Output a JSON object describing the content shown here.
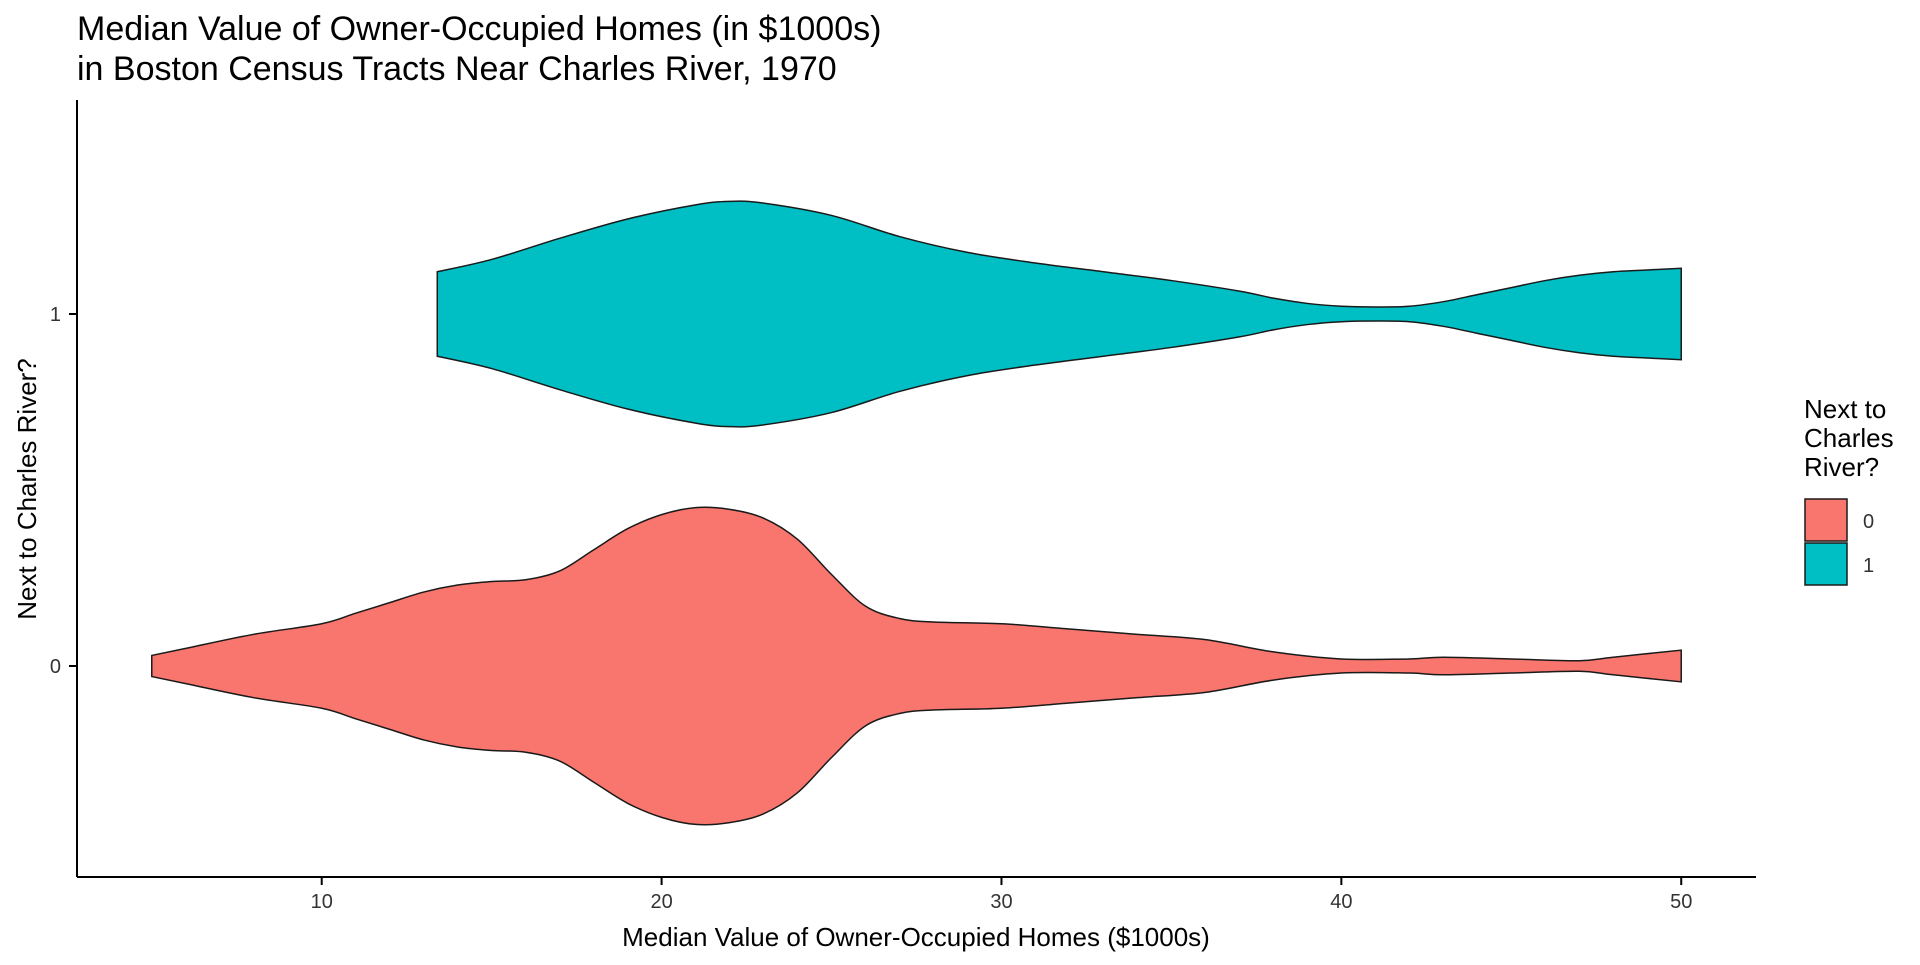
{
  "chart_data": {
    "type": "violin",
    "title": "Median Value of Owner-Occupied Homes (in $1000s)",
    "subtitle": "in Boston Census Tracts Near Charles River, 1970",
    "xlabel": "Median Value of Owner-Occupied Homes ($1000s)",
    "ylabel": "Next to Charles River?",
    "xlim": [
      2.8,
      52.2
    ],
    "xticks": [
      10,
      20,
      30,
      40,
      50
    ],
    "categories": [
      "0",
      "1"
    ],
    "grid": false,
    "legend": {
      "title_lines": [
        "Next to",
        "Charles",
        "River?"
      ],
      "placement": "right",
      "items": [
        {
          "label": "0",
          "color": "#F8766D"
        },
        {
          "label": "1",
          "color": "#00BFC4"
        }
      ]
    },
    "series": [
      {
        "category": "0",
        "color": "#F8766D",
        "range": [
          5,
          50
        ],
        "half_width_profile": [
          [
            5,
            0.03
          ],
          [
            6,
            0.05
          ],
          [
            8,
            0.09
          ],
          [
            10,
            0.12
          ],
          [
            11,
            0.15
          ],
          [
            12,
            0.18
          ],
          [
            13,
            0.21
          ],
          [
            14,
            0.23
          ],
          [
            15,
            0.24
          ],
          [
            16,
            0.245
          ],
          [
            17,
            0.27
          ],
          [
            18,
            0.33
          ],
          [
            19,
            0.39
          ],
          [
            20,
            0.43
          ],
          [
            21,
            0.45
          ],
          [
            22,
            0.445
          ],
          [
            23,
            0.42
          ],
          [
            24,
            0.36
          ],
          [
            25,
            0.26
          ],
          [
            26,
            0.17
          ],
          [
            27,
            0.135
          ],
          [
            28,
            0.125
          ],
          [
            30,
            0.12
          ],
          [
            32,
            0.105
          ],
          [
            34,
            0.09
          ],
          [
            36,
            0.075
          ],
          [
            38,
            0.04
          ],
          [
            40,
            0.02
          ],
          [
            42,
            0.02
          ],
          [
            43,
            0.025
          ],
          [
            45,
            0.02
          ],
          [
            47,
            0.015
          ],
          [
            48,
            0.025
          ],
          [
            50,
            0.045
          ]
        ]
      },
      {
        "category": "1",
        "color": "#00BFC4",
        "range": [
          13.4,
          50
        ],
        "half_width_profile": [
          [
            13.4,
            0.12
          ],
          [
            15,
            0.155
          ],
          [
            17,
            0.215
          ],
          [
            19,
            0.27
          ],
          [
            21,
            0.31
          ],
          [
            22,
            0.32
          ],
          [
            23,
            0.315
          ],
          [
            25,
            0.28
          ],
          [
            27,
            0.22
          ],
          [
            29,
            0.175
          ],
          [
            31,
            0.145
          ],
          [
            33,
            0.12
          ],
          [
            35,
            0.095
          ],
          [
            37,
            0.065
          ],
          [
            38,
            0.045
          ],
          [
            39,
            0.03
          ],
          [
            40,
            0.022
          ],
          [
            41,
            0.02
          ],
          [
            42,
            0.022
          ],
          [
            43,
            0.035
          ],
          [
            44,
            0.055
          ],
          [
            45,
            0.075
          ],
          [
            46,
            0.095
          ],
          [
            47,
            0.11
          ],
          [
            48,
            0.12
          ],
          [
            49,
            0.125
          ],
          [
            50,
            0.13
          ]
        ]
      }
    ]
  }
}
